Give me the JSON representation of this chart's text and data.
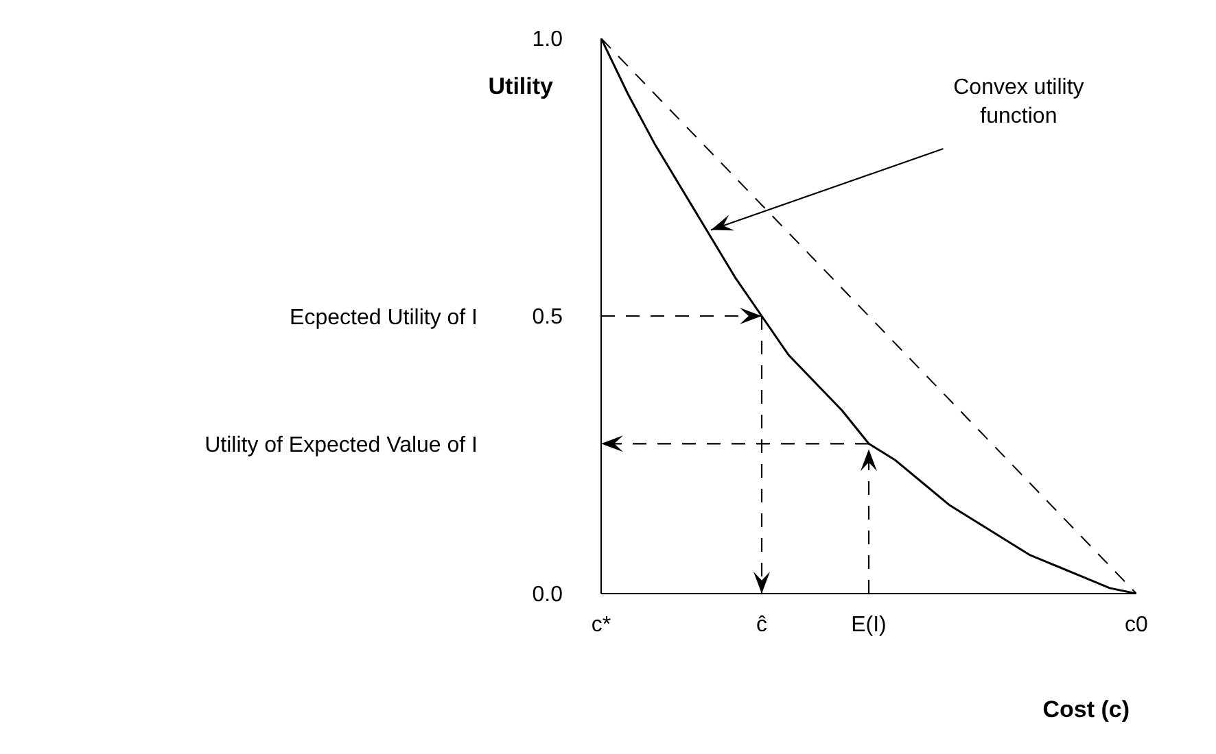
{
  "chart_data": {
    "type": "line",
    "xlabel": "Cost (c)",
    "ylabel": "Utility",
    "ylim": [
      0,
      1
    ],
    "categories": [
      "c*",
      null,
      null,
      null,
      null,
      null,
      "ĉ",
      null,
      null,
      null,
      "E(I)",
      null,
      null,
      null,
      null,
      null,
      null,
      null,
      null,
      null,
      "c0"
    ],
    "yticks": [
      {
        "value": 0,
        "label": "0.0"
      },
      {
        "value": 0.5,
        "label": "0.5"
      },
      {
        "value": 1,
        "label": "1.0"
      }
    ],
    "grid": false,
    "marker": "none",
    "series": [
      {
        "color": "#000000",
        "line_style": "solid",
        "values": [
          1,
          0.9,
          0.81,
          0.73,
          0.65,
          0.57,
          0.5,
          0.43,
          0.38,
          0.33,
          0.27,
          0.24,
          0.2,
          0.16,
          0.13,
          0.1,
          0.07,
          0.05,
          0.03,
          0.01,
          0
        ]
      },
      {
        "color": "#000000",
        "line_style": "dashed",
        "values": [
          1,
          0.95,
          0.9,
          0.85,
          0.8,
          0.75,
          0.7,
          0.65,
          0.6,
          0.55,
          0.5,
          0.45,
          0.4,
          0.35,
          0.3,
          0.25,
          0.2,
          0.15,
          0.1,
          0.05,
          0
        ]
      }
    ],
    "annotations": [
      "Convex utility function",
      "Ecpected Utility of I",
      "Utility of Expected Value of I"
    ]
  }
}
